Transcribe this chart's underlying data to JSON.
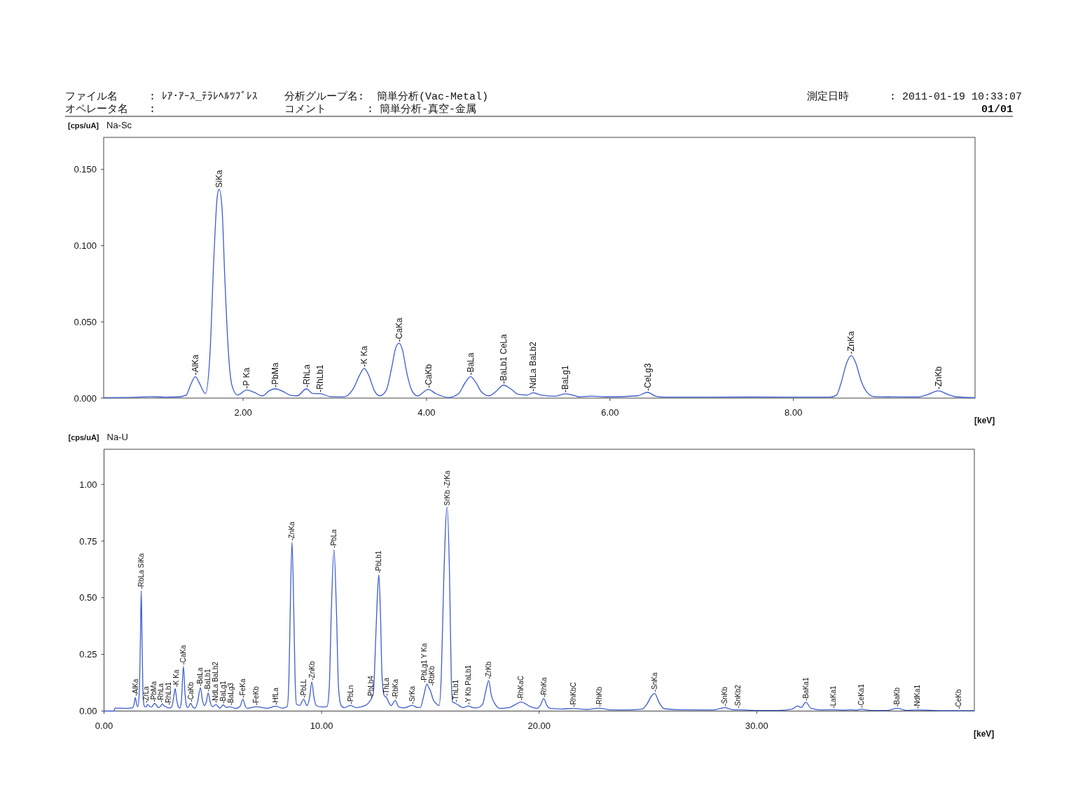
{
  "chart_data": [
    {
      "type": "other",
      "annotations": [
        "ファイル名",
        ": ﾚｱ･ｱｰｽ_ﾃﾗﾚﾍﾙﾂﾌﾞﾚｽ",
        "分析グループ名:",
        "簡単分析(Vac-Metal)",
        "測定日時",
        ": 2011-01-19 10:33:07",
        "オペレータ名",
        ":",
        "コメント",
        ": 簡単分析-真空-金属",
        "01/01"
      ]
    },
    {
      "type": "line",
      "title": "Na-Sc",
      "ylabel": "[cps/uA]",
      "xlabel": "[keV]",
      "xlim": [
        0.48,
        9.98
      ],
      "ylim": [
        0,
        0.171
      ],
      "xticks": [
        {
          "value": 2,
          "label": "2.00"
        },
        {
          "value": 4,
          "label": "4.00"
        },
        {
          "value": 6,
          "label": "6.00"
        },
        {
          "value": 8,
          "label": "8.00"
        }
      ],
      "yticks": [
        {
          "value": 0,
          "label": "0.000"
        },
        {
          "value": 0.05,
          "label": "0.050"
        },
        {
          "value": 0.1,
          "label": "0.100"
        },
        {
          "value": 0.15,
          "label": "0.150"
        }
      ],
      "x": [
        0.48,
        0.8,
        1.0,
        1.15,
        1.3,
        1.38,
        1.43,
        1.48,
        1.53,
        1.59,
        1.64,
        1.68,
        1.72,
        1.74,
        1.77,
        1.8,
        1.84,
        1.88,
        1.94,
        2.04,
        2.12,
        2.21,
        2.29,
        2.35,
        2.43,
        2.52,
        2.59,
        2.69,
        2.76,
        2.84,
        2.95,
        3.1,
        3.2,
        3.27,
        3.32,
        3.37,
        3.43,
        3.49,
        3.56,
        3.62,
        3.66,
        3.7,
        3.74,
        3.78,
        3.84,
        3.9,
        4.02,
        4.1,
        4.24,
        4.35,
        4.42,
        4.48,
        4.54,
        4.6,
        4.68,
        4.75,
        4.84,
        4.92,
        5.0,
        5.1,
        5.16,
        5.25,
        5.4,
        5.51,
        5.62,
        5.66,
        5.8,
        5.95,
        6.3,
        6.41,
        6.5,
        6.6,
        7.5,
        8.4,
        8.47,
        8.52,
        8.58,
        8.63,
        8.68,
        8.74,
        8.8,
        8.88,
        9.35,
        9.47,
        9.58,
        9.68,
        9.78,
        9.98
      ],
      "series": [
        {
          "color": "#3d5ccc",
          "values": [
            0.0003,
            0.0005,
            0.001,
            0.0006,
            0.0008,
            0.002,
            0.009,
            0.0141,
            0.009,
            0.003,
            0.03,
            0.09,
            0.133,
            0.137,
            0.125,
            0.08,
            0.03,
            0.008,
            0.002,
            0.0053,
            0.0038,
            0.0015,
            0.005,
            0.0061,
            0.0045,
            0.0018,
            0.0015,
            0.0061,
            0.003,
            0.0029,
            0.001,
            0.0009,
            0.006,
            0.015,
            0.0195,
            0.015,
            0.005,
            0.0015,
            0.005,
            0.02,
            0.032,
            0.036,
            0.031,
            0.018,
            0.005,
            0.0015,
            0.0057,
            0.003,
            0.0004,
            0.003,
            0.01,
            0.0141,
            0.01,
            0.004,
            0.0015,
            0.004,
            0.0085,
            0.006,
            0.0025,
            0.002,
            0.0035,
            0.002,
            0.0012,
            0.0028,
            0.0015,
            0.0008,
            0.0013,
            0.0008,
            0.0015,
            0.0038,
            0.0012,
            0.0006,
            0.0007,
            0.0006,
            0.002,
            0.01,
            0.023,
            0.0279,
            0.023,
            0.011,
            0.004,
            0.001,
            0.0007,
            0.0025,
            0.0048,
            0.0025,
            0.0008,
            0.0003
          ]
        }
      ],
      "annotations": [
        {
          "text": "-AlKa",
          "x": 1.48,
          "y": 0.0141
        },
        {
          "text": "SiKa",
          "x": 1.74,
          "y": 0.137
        },
        {
          "text": "-P Ka",
          "x": 2.04,
          "y": 0.0053
        },
        {
          "text": "-PbMa",
          "x": 2.35,
          "y": 0.0061
        },
        {
          "text": "-RhLa",
          "x": 2.69,
          "y": 0.0061
        },
        {
          "text": "-RhLb1",
          "x": 2.84,
          "y": 0.0029
        },
        {
          "text": "-K Ka",
          "x": 3.32,
          "y": 0.0195
        },
        {
          "text": "-CaKa",
          "x": 3.7,
          "y": 0.036
        },
        {
          "text": "-CaKb",
          "x": 4.02,
          "y": 0.0057
        },
        {
          "text": "-BaLa",
          "x": 4.48,
          "y": 0.0141
        },
        {
          "text": "-BaLb1 CeLa",
          "x": 4.84,
          "y": 0.0085
        },
        {
          "text": "-NdLa BaLb2",
          "x": 5.16,
          "y": 0.0035
        },
        {
          "text": "-BaLg1",
          "x": 5.51,
          "y": 0.0028
        },
        {
          "text": "-CeLg3",
          "x": 6.41,
          "y": 0.0038
        },
        {
          "text": "-ZnKa",
          "x": 8.63,
          "y": 0.0279
        },
        {
          "text": "-ZnKb",
          "x": 9.58,
          "y": 0.0048
        }
      ]
    },
    {
      "type": "line",
      "title": "Na-U",
      "ylabel": "[cps/uA]",
      "xlabel": "[keV]",
      "xlim": [
        0,
        40
      ],
      "ylim": [
        0,
        1.155
      ],
      "xticks": [
        {
          "value": 0,
          "label": "0.00"
        },
        {
          "value": 10,
          "label": "10.00"
        },
        {
          "value": 20,
          "label": "20.00"
        },
        {
          "value": 30,
          "label": "30.00"
        }
      ],
      "yticks": [
        {
          "value": 0,
          "label": "0.00"
        },
        {
          "value": 0.25,
          "label": "0.25"
        },
        {
          "value": 0.5,
          "label": "0.50"
        },
        {
          "value": 0.75,
          "label": "0.75"
        },
        {
          "value": 1,
          "label": "1.00"
        }
      ],
      "x": [
        0,
        0.46,
        0.5,
        1.0,
        1.3,
        1.38,
        1.44,
        1.5,
        1.55,
        1.62,
        1.67,
        1.71,
        1.75,
        1.8,
        1.86,
        1.93,
        2.0,
        2.1,
        2.18,
        2.33,
        2.45,
        2.52,
        2.6,
        2.68,
        2.76,
        2.84,
        2.95,
        3.1,
        3.2,
        3.27,
        3.34,
        3.42,
        3.49,
        3.56,
        3.65,
        3.72,
        3.8,
        3.86,
        3.98,
        4.08,
        4.18,
        4.3,
        4.43,
        4.52,
        4.61,
        4.7,
        4.79,
        4.88,
        4.99,
        5.15,
        5.31,
        5.48,
        5.62,
        5.77,
        6.06,
        6.25,
        6.38,
        6.5,
        6.59,
        7.0,
        7.5,
        7.88,
        8.21,
        8.42,
        8.5,
        8.56,
        8.64,
        8.72,
        8.78,
        8.85,
        9.0,
        9.17,
        9.33,
        9.45,
        9.55,
        9.65,
        9.76,
        10.0,
        10.25,
        10.35,
        10.45,
        10.57,
        10.68,
        10.78,
        10.9,
        11.05,
        11.32,
        11.6,
        12.02,
        12.15,
        12.26,
        12.38,
        12.48,
        12.56,
        12.63,
        12.7,
        12.78,
        12.88,
        12.98,
        13.1,
        13.2,
        13.38,
        13.55,
        13.8,
        14.16,
        14.4,
        14.54,
        14.7,
        14.84,
        14.92,
        15.0,
        15.13,
        15.3,
        15.4,
        15.5,
        15.62,
        15.77,
        15.88,
        15.96,
        16.02,
        16.15,
        16.3,
        16.5,
        16.74,
        17.0,
        17.12,
        17.4,
        17.55,
        17.68,
        17.8,
        17.98,
        18.19,
        18.6,
        18.84,
        19.16,
        19.59,
        19.9,
        20.05,
        20.21,
        20.35,
        20.5,
        21.0,
        21.57,
        22.2,
        22.75,
        23.2,
        24.0,
        24.7,
        24.95,
        25.15,
        25.31,
        25.5,
        25.75,
        26.5,
        28.0,
        28.52,
        28.9,
        29.14,
        30.0,
        31.0,
        31.6,
        31.88,
        32.05,
        32.25,
        32.5,
        33.0,
        33.52,
        34.0,
        34.35,
        34.55,
        34.81,
        35.2,
        36.0,
        36.44,
        36.9,
        37.38,
        38.5,
        39.28,
        40.0
      ],
      "series": [
        {
          "color": "#3d5ccc",
          "values": [
            0,
            0,
            0.013,
            0.012,
            0.014,
            0.03,
            0.06,
            0.03,
            0.019,
            0.08,
            0.3,
            0.532,
            0.3,
            0.06,
            0.02,
            0.018,
            0.029,
            0.02,
            0.018,
            0.034,
            0.02,
            0.015,
            0.022,
            0.032,
            0.022,
            0.02,
            0.014,
            0.016,
            0.06,
            0.099,
            0.05,
            0.018,
            0.013,
            0.05,
            0.197,
            0.08,
            0.02,
            0.015,
            0.034,
            0.018,
            0.013,
            0.04,
            0.103,
            0.05,
            0.024,
            0.04,
            0.08,
            0.04,
            0.019,
            0.029,
            0.013,
            0.027,
            0.016,
            0.019,
            0.012,
            0.02,
            0.052,
            0.02,
            0.012,
            0.019,
            0.012,
            0.021,
            0.013,
            0.02,
            0.15,
            0.45,
            0.745,
            0.45,
            0.15,
            0.03,
            0.025,
            0.052,
            0.024,
            0.06,
            0.129,
            0.06,
            0.024,
            0.018,
            0.02,
            0.1,
            0.45,
            0.713,
            0.45,
            0.1,
            0.024,
            0.015,
            0.025,
            0.015,
            0.025,
            0.035,
            0.05,
            0.08,
            0.3,
            0.5,
            0.602,
            0.45,
            0.15,
            0.068,
            0.06,
            0.035,
            0.024,
            0.047,
            0.018,
            0.014,
            0.025,
            0.016,
            0.016,
            0.07,
            0.119,
            0.105,
            0.09,
            0.05,
            0.03,
            0.024,
            0.15,
            0.6,
            0.9,
            0.6,
            0.15,
            0.04,
            0.034,
            0.025,
            0.015,
            0.022,
            0.014,
            0.014,
            0.03,
            0.09,
            0.135,
            0.07,
            0.03,
            0.012,
            0.015,
            0.025,
            0.04,
            0.02,
            0.012,
            0.025,
            0.055,
            0.025,
            0.012,
            0.009,
            0.011,
            0.007,
            0.013,
            0.006,
            0.005,
            0.008,
            0.03,
            0.065,
            0.078,
            0.04,
            0.01,
            0.006,
            0.005,
            0.015,
            0.006,
            0.006,
            0.003,
            0.003,
            0.008,
            0.022,
            0.016,
            0.039,
            0.012,
            0.005,
            0.006,
            0.004,
            0.006,
            0.004,
            0.008,
            0.003,
            0.003,
            0.012,
            0.003,
            0.005,
            0.002,
            0.002,
            0.002
          ]
        }
      ],
      "annotations": [
        {
          "text": "-AlKa",
          "x": 1.44,
          "y": 0.06
        },
        {
          "text": "-RbLa SiKa",
          "x": 1.71,
          "y": 0.532
        },
        {
          "text": "-ZrLa",
          "x": 2.0,
          "y": 0.029
        },
        {
          "text": "-PbMa",
          "x": 2.33,
          "y": 0.034
        },
        {
          "text": "-RhLa",
          "x": 2.68,
          "y": 0.032
        },
        {
          "text": "-RhLb1",
          "x": 2.84,
          "y": 0.02
        },
        {
          "text": "-K Ka",
          "x": 3.27,
          "y": 0.099
        },
        {
          "text": "-CaKa",
          "x": 3.65,
          "y": 0.197
        },
        {
          "text": "-CaKb",
          "x": 3.98,
          "y": 0.034
        },
        {
          "text": "-BaLa",
          "x": 4.43,
          "y": 0.103
        },
        {
          "text": "-BaLb1",
          "x": 4.79,
          "y": 0.08
        },
        {
          "text": "-NdLa BaLb2",
          "x": 5.15,
          "y": 0.029
        },
        {
          "text": "-BaLg1",
          "x": 5.48,
          "y": 0.027
        },
        {
          "text": "-BaLg3",
          "x": 5.77,
          "y": 0.019
        },
        {
          "text": "-FeKa",
          "x": 6.38,
          "y": 0.052
        },
        {
          "text": "-FeKb",
          "x": 7.0,
          "y": 0.019
        },
        {
          "text": "-HfLa",
          "x": 7.88,
          "y": 0.021
        },
        {
          "text": "-ZnKa",
          "x": 8.64,
          "y": 0.745
        },
        {
          "text": "-PbLL",
          "x": 9.17,
          "y": 0.052
        },
        {
          "text": "-ZnKb",
          "x": 9.55,
          "y": 0.129
        },
        {
          "text": "-PbLa",
          "x": 10.57,
          "y": 0.713
        },
        {
          "text": "-PbLn",
          "x": 11.32,
          "y": 0.025
        },
        {
          "text": "-PbLb4",
          "x": 12.26,
          "y": 0.05
        },
        {
          "text": "-PbLb1",
          "x": 12.63,
          "y": 0.602
        },
        {
          "text": "-ThLa",
          "x": 12.98,
          "y": 0.06
        },
        {
          "text": "-RbKa",
          "x": 13.38,
          "y": 0.047
        },
        {
          "text": "-SrKa",
          "x": 14.16,
          "y": 0.025
        },
        {
          "text": "-PbLg1 Y Ka",
          "x": 14.84,
          "y": 0.119
        },
        {
          "text": "-RbKb",
          "x": 14.92,
          "y": 0.105
        },
        {
          "text": "SrKb -ZrKa",
          "x": 15.77,
          "y": 0.9
        },
        {
          "text": "-ThLb1",
          "x": 16.15,
          "y": 0.034
        },
        {
          "text": "-Y Kb PaLb1",
          "x": 16.74,
          "y": 0.022
        },
        {
          "text": "-ZrKb",
          "x": 17.68,
          "y": 0.135
        },
        {
          "text": "-RhKaC",
          "x": 19.16,
          "y": 0.04
        },
        {
          "text": "-RhKa",
          "x": 20.21,
          "y": 0.055
        },
        {
          "text": "-RhKbC",
          "x": 21.57,
          "y": 0.011
        },
        {
          "text": "-RhKb",
          "x": 22.75,
          "y": 0.013
        },
        {
          "text": "-SnKa",
          "x": 25.31,
          "y": 0.078
        },
        {
          "text": "-SnKb",
          "x": 28.52,
          "y": 0.015
        },
        {
          "text": "-SnKb2",
          "x": 29.14,
          "y": 0.006
        },
        {
          "text": "-BaKa1",
          "x": 32.25,
          "y": 0.039
        },
        {
          "text": "-LaKa1",
          "x": 33.52,
          "y": 0.006
        },
        {
          "text": "-CeKa1",
          "x": 34.81,
          "y": 0.008
        },
        {
          "text": "-BaKb",
          "x": 36.44,
          "y": 0.012
        },
        {
          "text": "-NdKa1",
          "x": 37.38,
          "y": 0.005
        },
        {
          "text": "-CeKb",
          "x": 39.28,
          "y": 0.002
        }
      ]
    }
  ]
}
